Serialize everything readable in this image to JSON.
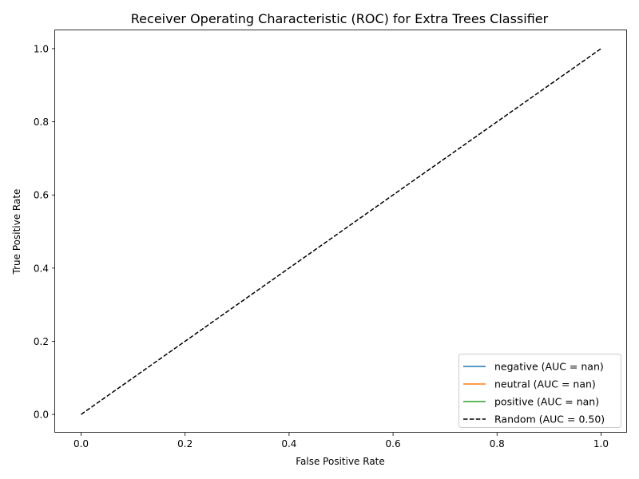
{
  "chart_data": {
    "type": "line",
    "title": "Receiver Operating Characteristic (ROC) for Extra Trees Classifier",
    "xlabel": "False Positive Rate",
    "ylabel": "True Positive Rate",
    "xlim": [
      -0.05,
      1.05
    ],
    "ylim": [
      -0.05,
      1.05
    ],
    "xticks": [
      0.0,
      0.2,
      0.4,
      0.6,
      0.8,
      1.0
    ],
    "yticks": [
      0.0,
      0.2,
      0.4,
      0.6,
      0.8,
      1.0
    ],
    "x_tick_labels": [
      "0.0",
      "0.2",
      "0.4",
      "0.6",
      "0.8",
      "1.0"
    ],
    "y_tick_labels": [
      "0.0",
      "0.2",
      "0.4",
      "0.6",
      "0.8",
      "1.0"
    ],
    "grid": false,
    "legend_position": "lower right",
    "series": [
      {
        "name": "negative (AUC = nan)",
        "color": "#1f77b4",
        "dash": "solid",
        "x": [],
        "y": []
      },
      {
        "name": "neutral (AUC = nan)",
        "color": "#ff7f0e",
        "dash": "solid",
        "x": [],
        "y": []
      },
      {
        "name": "positive (AUC = nan)",
        "color": "#2ca02c",
        "dash": "solid",
        "x": [],
        "y": []
      },
      {
        "name": "Random (AUC = 0.50)",
        "color": "#000000",
        "dash": "dashed",
        "x": [
          0,
          1
        ],
        "y": [
          0,
          1
        ]
      }
    ]
  }
}
